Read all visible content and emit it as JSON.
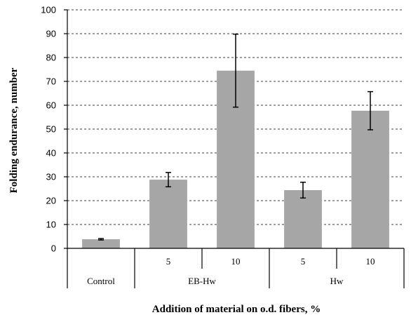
{
  "chart_data": {
    "type": "bar",
    "ylabel": "Folding endurance, number",
    "xlabel": "Addition of material on o.d. fibers, %",
    "ylim": [
      0,
      100
    ],
    "yticks": [
      0,
      10,
      20,
      30,
      40,
      50,
      60,
      70,
      80,
      90,
      100
    ],
    "grid": true,
    "groups": [
      {
        "label": "Control",
        "bars": [
          {
            "label": "",
            "value": 3.8,
            "error": 0.3
          }
        ]
      },
      {
        "label": "EB-Hw",
        "bars": [
          {
            "label": "5",
            "value": 28.8,
            "error": 3.0
          },
          {
            "label": "10",
            "value": 74.5,
            "error": 15.3
          }
        ]
      },
      {
        "label": "Hw",
        "bars": [
          {
            "label": "5",
            "value": 24.4,
            "error": 3.3
          },
          {
            "label": "10",
            "value": 57.7,
            "error": 8.0
          }
        ]
      }
    ]
  }
}
